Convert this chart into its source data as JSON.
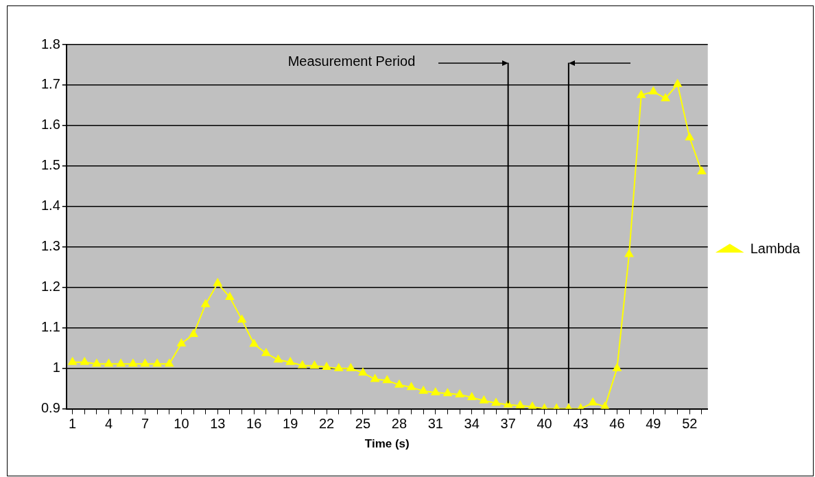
{
  "chart_data": {
    "type": "line",
    "xlabel": "Time (s)",
    "x": [
      1,
      2,
      3,
      4,
      5,
      6,
      7,
      8,
      9,
      10,
      11,
      12,
      13,
      14,
      15,
      16,
      17,
      18,
      19,
      20,
      21,
      22,
      23,
      24,
      25,
      26,
      27,
      28,
      29,
      30,
      31,
      32,
      33,
      34,
      35,
      36,
      37,
      38,
      39,
      40,
      41,
      42,
      43,
      44,
      45,
      46,
      47,
      48,
      49,
      50,
      51,
      52,
      53
    ],
    "series": [
      {
        "name": "Lambda",
        "color": "#ffff00",
        "values": [
          1.015,
          1.015,
          1.011,
          1.011,
          1.011,
          1.011,
          1.011,
          1.011,
          1.011,
          1.061,
          1.084,
          1.158,
          1.21,
          1.176,
          1.12,
          1.06,
          1.037,
          1.021,
          1.015,
          1.007,
          1.006,
          1.003,
          1.0,
          1.0,
          0.989,
          0.973,
          0.97,
          0.959,
          0.953,
          0.944,
          0.94,
          0.938,
          0.935,
          0.928,
          0.92,
          0.914,
          0.91,
          0.908,
          0.905,
          0.9,
          0.9,
          0.9,
          0.9,
          0.915,
          0.905,
          1.0,
          1.282,
          1.675,
          1.684,
          1.667,
          1.702,
          1.57,
          1.486
        ]
      }
    ],
    "xlim": [
      0.5,
      53.5
    ],
    "xticks": [
      1,
      {
        "value": 2,
        "label": null
      },
      {
        "value": 3,
        "label": null
      },
      4,
      {
        "value": 5,
        "label": null
      },
      {
        "value": 6,
        "label": null
      },
      7,
      {
        "value": 8,
        "label": null
      },
      {
        "value": 9,
        "label": null
      },
      10,
      {
        "value": 11,
        "label": null
      },
      {
        "value": 12,
        "label": null
      },
      13,
      {
        "value": 14,
        "label": null
      },
      {
        "value": 15,
        "label": null
      },
      16,
      {
        "value": 17,
        "label": null
      },
      {
        "value": 18,
        "label": null
      },
      19,
      {
        "value": 20,
        "label": null
      },
      {
        "value": 21,
        "label": null
      },
      22,
      {
        "value": 23,
        "label": null
      },
      {
        "value": 24,
        "label": null
      },
      25,
      {
        "value": 26,
        "label": null
      },
      {
        "value": 27,
        "label": null
      },
      28,
      {
        "value": 29,
        "label": null
      },
      {
        "value": 30,
        "label": null
      },
      31,
      {
        "value": 32,
        "label": null
      },
      {
        "value": 33,
        "label": null
      },
      34,
      {
        "value": 35,
        "label": null
      },
      {
        "value": 36,
        "label": null
      },
      37,
      {
        "value": 38,
        "label": null
      },
      {
        "value": 39,
        "label": null
      },
      40,
      {
        "value": 41,
        "label": null
      },
      {
        "value": 42,
        "label": null
      },
      43,
      {
        "value": 44,
        "label": null
      },
      {
        "value": 45,
        "label": null
      },
      46,
      {
        "value": 47,
        "label": null
      },
      {
        "value": 48,
        "label": null
      },
      49,
      {
        "value": 50,
        "label": null
      },
      {
        "value": 51,
        "label": null
      },
      52,
      {
        "value": 53,
        "label": null
      }
    ],
    "ylim": [
      0.9,
      1.8
    ],
    "yticks": [
      0.9,
      1,
      1.1,
      1.2,
      1.3,
      1.4,
      1.5,
      1.6,
      1.7,
      1.8
    ],
    "grid": "y",
    "legend": "right",
    "marker": "triangle",
    "line_style": "solid",
    "ref_lines": [
      {
        "axis": "x",
        "value": 37,
        "color": "#000000"
      },
      {
        "axis": "x",
        "value": 42,
        "color": "#000000"
      }
    ],
    "annotations": [
      "Measurement Period"
    ]
  }
}
